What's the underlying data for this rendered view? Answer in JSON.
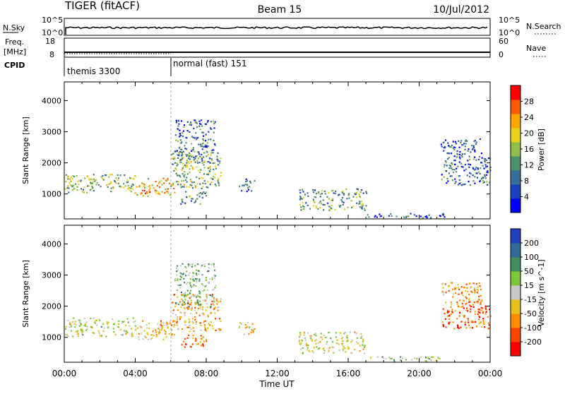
{
  "header": {
    "left": "TIGER (fitACF)",
    "center": "Beam 15",
    "right": "10/Jul/2012"
  },
  "status_panels": {
    "nsky": {
      "label": "N.Sky",
      "tick_top": "10^5",
      "tick_bottom": "10^0",
      "right_label": "N.Search",
      "right_tick_top": "10^5",
      "right_tick_bottom": "10^0"
    },
    "freq": {
      "label_line1": "Freq.",
      "label_line2": "[MHz]",
      "tick_top": "18",
      "tick_bottom": "8",
      "right_label": "Nave",
      "right_tick_top": "60",
      "right_tick_bottom": "0"
    },
    "cpid": {
      "label": "CPID",
      "segments": [
        {
          "name": "themis 3300",
          "start_ut": 0,
          "end_ut": 6
        },
        {
          "name": "normal (fast) 151",
          "start_ut": 6,
          "end_ut": 24
        }
      ]
    }
  },
  "chart_data": [
    {
      "type": "heatmap",
      "parameter": "Power",
      "ylabel": "Slant Range [km]",
      "xlabel": "",
      "ylim": [
        200,
        4600
      ],
      "yticks": [
        "1000",
        "2000",
        "3000",
        "4000"
      ],
      "xlim": [
        0,
        24
      ],
      "colorbar": {
        "label": "Power [dB]",
        "ticks": [
          "4",
          "8",
          "12",
          "16",
          "20",
          "24",
          "28"
        ],
        "range": [
          0,
          30
        ],
        "colors": [
          "#0000ff",
          "#1a3fbf",
          "#3a6e9a",
          "#4e8f6c",
          "#8fbf4a",
          "#e6d21a",
          "#ffa500",
          "#ff5a00",
          "#ff0000"
        ]
      },
      "regions": [
        {
          "t0": 0.0,
          "t1": 4.0,
          "r0": 1050,
          "r1": 1650,
          "v": 14
        },
        {
          "t0": 4.0,
          "t1": 6.2,
          "r0": 950,
          "r1": 1550,
          "v": 20
        },
        {
          "t0": 6.0,
          "t1": 8.8,
          "r0": 1200,
          "r1": 2400,
          "v": 14
        },
        {
          "t0": 6.2,
          "t1": 8.5,
          "r0": 2000,
          "r1": 3400,
          "v": 8
        },
        {
          "t0": 6.5,
          "t1": 8.0,
          "r0": 700,
          "r1": 1100,
          "v": 10
        },
        {
          "t0": 9.8,
          "t1": 10.7,
          "r0": 1100,
          "r1": 1500,
          "v": 6
        },
        {
          "t0": 13.2,
          "t1": 17.0,
          "r0": 500,
          "r1": 1200,
          "v": 12
        },
        {
          "t0": 17.0,
          "t1": 21.5,
          "r0": 250,
          "r1": 400,
          "v": 6
        },
        {
          "t0": 21.2,
          "t1": 24.0,
          "r0": 1300,
          "r1": 2200,
          "v": 8
        },
        {
          "t0": 21.2,
          "t1": 23.5,
          "r0": 2200,
          "r1": 2800,
          "v": 6
        }
      ]
    },
    {
      "type": "heatmap",
      "parameter": "Velocity",
      "ylabel": "Slant Range [km]",
      "xlabel": "Time UT",
      "ylim": [
        200,
        4600
      ],
      "yticks": [
        "1000",
        "2000",
        "3000",
        "4000"
      ],
      "xlim": [
        0,
        24
      ],
      "xticks": [
        "00:00",
        "04:00",
        "08:00",
        "12:00",
        "16:00",
        "20:00",
        "00:00"
      ],
      "colorbar": {
        "label": "Velocity [m s^-1]",
        "ticks": [
          "200",
          "100",
          "50",
          "15",
          "-15",
          "-50",
          "-100",
          "-200"
        ],
        "range": [
          -250,
          250
        ],
        "colors": [
          "#1f3fbf",
          "#2e6b9a",
          "#3f8f5f",
          "#7cc63a",
          "#c8c8c8",
          "#e6c21a",
          "#ff8a00",
          "#ff4400",
          "#ff0000"
        ]
      },
      "regions": [
        {
          "t0": 0.0,
          "t1": 4.0,
          "r0": 1050,
          "r1": 1650,
          "v": 0
        },
        {
          "t0": 4.0,
          "t1": 6.2,
          "r0": 950,
          "r1": 1550,
          "v": -60
        },
        {
          "t0": 6.0,
          "t1": 8.8,
          "r0": 1200,
          "r1": 2400,
          "v": -80
        },
        {
          "t0": 6.2,
          "t1": 8.5,
          "r0": 2000,
          "r1": 3400,
          "v": 60
        },
        {
          "t0": 6.5,
          "t1": 8.0,
          "r0": 700,
          "r1": 1100,
          "v": -120
        },
        {
          "t0": 9.8,
          "t1": 10.7,
          "r0": 1100,
          "r1": 1500,
          "v": -40
        },
        {
          "t0": 13.2,
          "t1": 17.0,
          "r0": 500,
          "r1": 1200,
          "v": -10
        },
        {
          "t0": 17.0,
          "t1": 21.5,
          "r0": 250,
          "r1": 400,
          "v": 40
        },
        {
          "t0": 21.2,
          "t1": 24.0,
          "r0": 1300,
          "r1": 2200,
          "v": -150
        },
        {
          "t0": 21.2,
          "t1": 23.5,
          "r0": 2200,
          "r1": 2800,
          "v": -100
        }
      ]
    }
  ]
}
